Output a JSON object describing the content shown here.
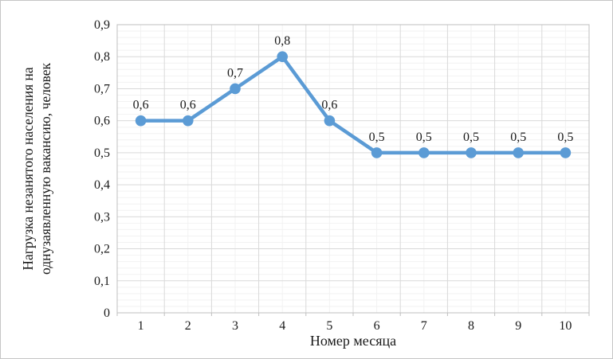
{
  "chart_data": {
    "type": "line",
    "categories": [
      "1",
      "2",
      "3",
      "4",
      "5",
      "6",
      "7",
      "8",
      "9",
      "10"
    ],
    "values": [
      0.6,
      0.6,
      0.7,
      0.8,
      0.6,
      0.5,
      0.5,
      0.5,
      0.5,
      0.5
    ],
    "data_labels": [
      "0,6",
      "0,6",
      "0,7",
      "0,8",
      "0,6",
      "0,5",
      "0,5",
      "0,5",
      "0,5",
      "0,5"
    ],
    "title": "",
    "xlabel": "Номер месяца",
    "ylabel_lines": [
      "Нагрузка незанятого населения на",
      "однузаявленную вакансию, человек"
    ],
    "ylim": [
      0,
      0.9
    ],
    "y_major_step": 0.1,
    "y_minor_step": 0.02,
    "y_tick_labels": [
      "0",
      "0,1",
      "0,2",
      "0,3",
      "0,4",
      "0,5",
      "0,6",
      "0,7",
      "0,8",
      "0,9"
    ],
    "grid": true,
    "legend": "none",
    "colors": {
      "series": "#5B9BD5",
      "major_grid": "#d9d9d9",
      "minor_grid": "#f2f2f2",
      "axis": "#bfbfbf",
      "text": "#1a1a1a"
    }
  }
}
